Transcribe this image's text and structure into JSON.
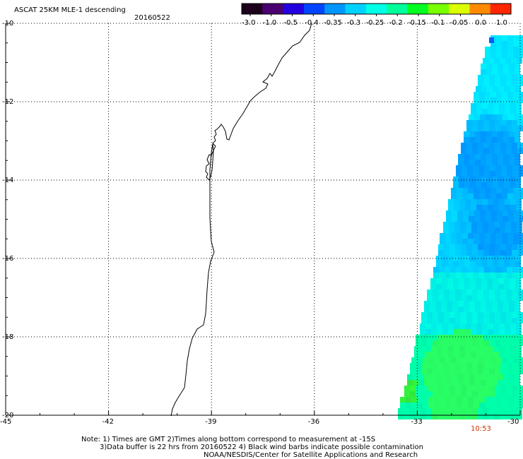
{
  "header": {
    "title": "ASCAT 25KM MLE-1 descending",
    "date": "20160522"
  },
  "colorbar": {
    "tick_labels": [
      "-3.0",
      "-1.0",
      "-0.5",
      "-0.4",
      "-0.35",
      "-0.3",
      "-0.25",
      "-0.2",
      "-0.15",
      "-0.1",
      "-0.05",
      "0.0",
      "1.0"
    ],
    "colors": [
      "#1c001c",
      "#4a0070",
      "#2200e0",
      "#0044ff",
      "#0096ff",
      "#00d2ff",
      "#00ffe6",
      "#00ff9a",
      "#00ff20",
      "#78ff00",
      "#dcff00",
      "#ff8a00",
      "#ff2600"
    ]
  },
  "axes": {
    "lat_labels": [
      "-10",
      "-12",
      "-14",
      "-16",
      "-18",
      "-20"
    ],
    "lat_values": [
      -10,
      -12,
      -14,
      -16,
      -18,
      -20
    ],
    "lon_labels": [
      "-45",
      "-42",
      "-39",
      "-36",
      "-33",
      "-30"
    ],
    "lon_values": [
      -45,
      -42,
      -39,
      -36,
      -33,
      -30
    ]
  },
  "pass_time": {
    "label": "10:53",
    "color": "#d23200"
  },
  "notes": [
    "Note: 1) Times are GMT 2)Times along bottom correspond to measurement at -15S",
    "3)Data buffer is 22 hrs from 20160522 4) Black wind barbs indicate possible contamination",
    "NOAA/NESDIS/Center for Satellite Applications and Research"
  ]
}
